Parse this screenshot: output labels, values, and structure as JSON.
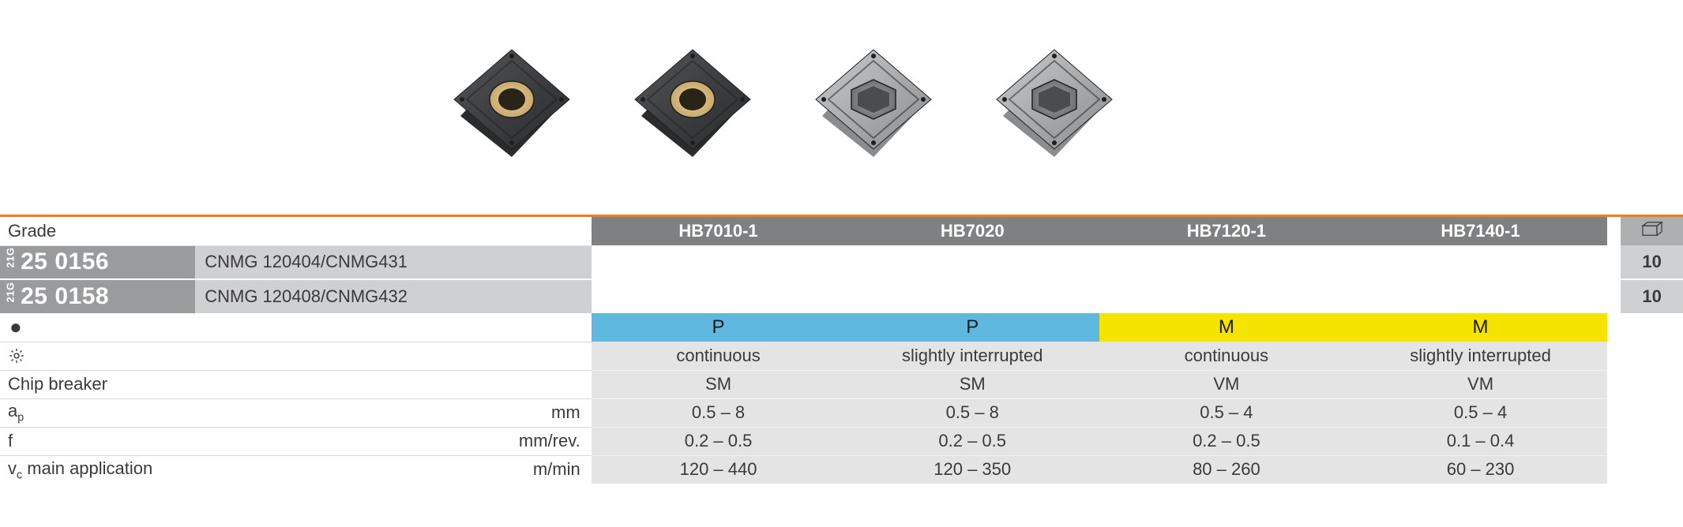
{
  "header": {
    "grade_label": "Grade",
    "grades": [
      "HB7010-1",
      "HB7020",
      "HB7120-1",
      "HB7140-1"
    ]
  },
  "products": [
    {
      "prefix": "21G",
      "code": "25 0156",
      "desc": "CNMG 120404/CNMG431",
      "qty": "10"
    },
    {
      "prefix": "21G",
      "code": "25 0158",
      "desc": "CNMG 120408/CNMG432",
      "qty": "10"
    }
  ],
  "material_row": {
    "values": [
      "P",
      "P",
      "M",
      "M"
    ],
    "classes": [
      "mat-P",
      "mat-P",
      "mat-M",
      "mat-M"
    ]
  },
  "machining_row": {
    "values": [
      "continuous",
      "slightly interrupted",
      "continuous",
      "slightly interrupted"
    ]
  },
  "params": [
    {
      "label": "Chip breaker",
      "unit": "",
      "values": [
        "SM",
        "SM",
        "VM",
        "VM"
      ]
    },
    {
      "label_html": "a<span class='sub'>p</span>",
      "unit": "mm",
      "values": [
        "0.5 – 8",
        "0.5 – 8",
        "0.5 – 4",
        "0.5 – 4"
      ]
    },
    {
      "label": "f",
      "unit": "mm/rev.",
      "values": [
        "0.2 – 0.5",
        "0.2 – 0.5",
        "0.2 – 0.5",
        "0.1 – 0.4"
      ]
    },
    {
      "label_html": "v<span class='sub'>c</span> main application",
      "unit": "m/min",
      "values": [
        "120 – 440",
        "120 – 350",
        "80 – 260",
        "60 – 230"
      ]
    }
  ],
  "colors": {
    "orange": "#f07d1a",
    "header_bg": "#7f8082",
    "code_bg": "#9a9b9d",
    "desc_bg": "#cfd0d2",
    "data_bg": "#e4e4e5",
    "p_bg": "#5fb8e0",
    "m_bg": "#f5e400"
  },
  "image_style": [
    "gold-hole",
    "gold-hole",
    "grey-hex",
    "grey-hex"
  ]
}
